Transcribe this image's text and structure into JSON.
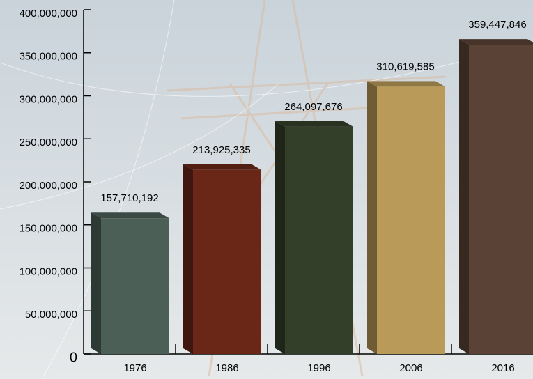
{
  "chart_data": {
    "type": "bar3d",
    "categories": [
      "1976",
      "1986",
      "1996",
      "2006",
      "2016"
    ],
    "values": [
      157710192,
      213925335,
      264097676,
      310619585,
      359447846
    ],
    "value_labels": [
      "157,710,192",
      "213,925,335",
      "264,097,676",
      "310,619,585",
      "359,447,846"
    ],
    "colors": [
      "#4b5f57",
      "#6a2617",
      "#343f29",
      "#b99a58",
      "#5b4236"
    ],
    "ylim": [
      0,
      400000000
    ],
    "yticks": [
      0,
      {
        "value": 50000000,
        "label": "50,000,000"
      },
      {
        "value": 100000000,
        "label": "100,000,000"
      },
      {
        "value": 150000000,
        "label": "150,000,000"
      },
      {
        "value": 200000000,
        "label": "200,000,000"
      },
      {
        "value": 250000000,
        "label": "250,000,000"
      },
      {
        "value": 300000000,
        "label": "300,000,000"
      },
      {
        "value": 350000000,
        "label": "350,000,000"
      },
      {
        "value": 400000000,
        "label": "400,000,000"
      }
    ],
    "grid": false
  }
}
